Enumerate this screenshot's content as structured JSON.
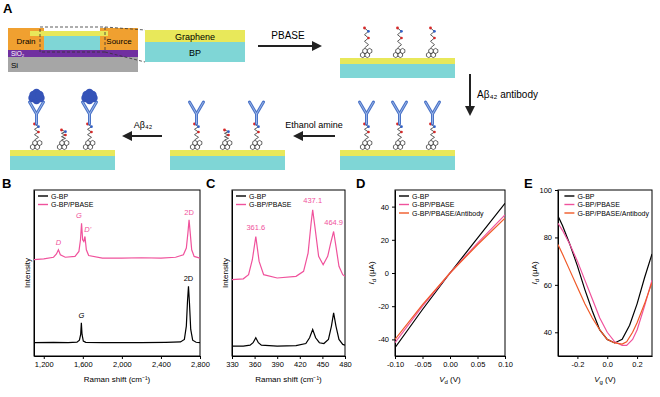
{
  "diagram": {
    "label": "A",
    "drain": "Drain",
    "source": "Source",
    "oxide": "SiO₂",
    "substrate": "Si",
    "top_layer": "Graphene",
    "bottom_layer": "BP",
    "steps": [
      "PBASE",
      "Aβ₄₂ antibody",
      "Ethanol amine",
      "Aβ₄₂"
    ]
  },
  "chart_data": [
    {
      "type": "line",
      "title": "B",
      "x_label": "Raman shift (cm⁻¹)",
      "y_label": "Intensity",
      "xlim": [
        1100,
        2800
      ],
      "ylim": [
        0,
        1
      ],
      "xticks": [
        {
          "value": 1200,
          "label": "1,200"
        },
        {
          "value": 1600,
          "label": "1,600"
        },
        {
          "value": 2000,
          "label": "2,000"
        },
        {
          "value": 2400,
          "label": "2,400"
        },
        {
          "value": 2800,
          "label": "2,800"
        }
      ],
      "yticks": [],
      "tick_labels": "x",
      "legend": "upper left",
      "series": [
        {
          "name": "G-BP",
          "color": "#000000",
          "x": [
            1100,
            1300,
            1450,
            1540,
            1565,
            1578,
            1585,
            1592,
            1605,
            1630,
            1800,
            2000,
            2200,
            2450,
            2600,
            2640,
            2660,
            2672,
            2682,
            2692,
            2705,
            2725,
            2760,
            2800
          ],
          "values": [
            0.08,
            0.082,
            0.08,
            0.083,
            0.095,
            0.13,
            0.2,
            0.13,
            0.09,
            0.082,
            0.08,
            0.081,
            0.08,
            0.082,
            0.085,
            0.1,
            0.18,
            0.33,
            0.42,
            0.32,
            0.16,
            0.095,
            0.083,
            0.08
          ],
          "annotations": [
            {
              "text": "G",
              "x": 1585,
              "y": 0.23
            },
            {
              "text": "2D",
              "x": 2682,
              "y": 0.45
            }
          ]
        },
        {
          "name": "G-BP/PBASE",
          "color": "#f0529c",
          "x": [
            1100,
            1200,
            1300,
            1330,
            1350,
            1370,
            1420,
            1520,
            1560,
            1576,
            1587,
            1598,
            1610,
            1622,
            1636,
            1660,
            1800,
            2000,
            2200,
            2400,
            2550,
            2630,
            2660,
            2676,
            2688,
            2700,
            2715,
            2740,
            2800
          ],
          "values": [
            0.58,
            0.585,
            0.595,
            0.615,
            0.64,
            0.61,
            0.595,
            0.6,
            0.63,
            0.7,
            0.8,
            0.7,
            0.69,
            0.72,
            0.64,
            0.605,
            0.59,
            0.59,
            0.592,
            0.59,
            0.595,
            0.61,
            0.65,
            0.74,
            0.82,
            0.74,
            0.64,
            0.6,
            0.59
          ],
          "annotations": [
            {
              "text": "D",
              "x": 1350,
              "y": 0.67
            },
            {
              "text": "G",
              "x": 1560,
              "y": 0.83
            },
            {
              "text": "D'",
              "x": 1650,
              "y": 0.75
            },
            {
              "text": "2D",
              "x": 2688,
              "y": 0.85
            }
          ]
        }
      ]
    },
    {
      "type": "line",
      "title": "C",
      "x_label": "Raman shift (cm⁻¹)",
      "y_label": "Intensity",
      "xlim": [
        330,
        480
      ],
      "ylim": [
        0,
        1
      ],
      "xticks": [
        330,
        360,
        390,
        420,
        450,
        480
      ],
      "yticks": [],
      "tick_labels": "x",
      "legend": "upper left",
      "series": [
        {
          "name": "G-BP",
          "color": "#000000",
          "x": [
            330,
            345,
            354,
            358,
            361.6,
            365,
            369,
            390,
            415,
            428,
            433,
            437.1,
            441,
            446,
            452,
            458,
            462,
            464.9,
            468,
            472,
            477,
            480
          ],
          "values": [
            0.06,
            0.06,
            0.065,
            0.08,
            0.11,
            0.08,
            0.065,
            0.06,
            0.062,
            0.075,
            0.11,
            0.16,
            0.11,
            0.08,
            0.075,
            0.1,
            0.18,
            0.26,
            0.18,
            0.1,
            0.07,
            0.065
          ]
        },
        {
          "name": "G-BP/PBASE",
          "color": "#f0529c",
          "x": [
            330,
            345,
            352,
            357,
            361.6,
            366,
            372,
            390,
            415,
            425,
            431,
            435,
            437.1,
            440,
            445,
            451,
            457,
            461,
            464.9,
            468,
            472,
            477,
            480
          ],
          "values": [
            0.46,
            0.465,
            0.49,
            0.58,
            0.72,
            0.57,
            0.49,
            0.47,
            0.48,
            0.51,
            0.62,
            0.8,
            0.88,
            0.78,
            0.6,
            0.55,
            0.6,
            0.68,
            0.75,
            0.66,
            0.54,
            0.49,
            0.48
          ],
          "annotations": [
            {
              "text": "361.6",
              "x": 361.6,
              "y": 0.76
            },
            {
              "text": "437.1",
              "x": 437.1,
              "y": 0.92
            },
            {
              "text": "464.9",
              "x": 464.9,
              "y": 0.79
            }
          ]
        }
      ]
    },
    {
      "type": "line",
      "title": "D",
      "x_label": "Vd (V)",
      "y_label": "Id (μA)",
      "xlim": [
        -0.1,
        0.1
      ],
      "ylim": [
        -50,
        50
      ],
      "xticks": [
        {
          "value": -0.1,
          "label": "-0.10"
        },
        -0.05,
        {
          "value": 0,
          "label": "0.00"
        },
        0.05,
        {
          "value": 0.1,
          "label": "0.10"
        }
      ],
      "yticks": [
        -40,
        -20,
        0,
        20,
        40
      ],
      "legend": "upper left",
      "series": [
        {
          "name": "G-BP",
          "color": "#000000",
          "x": [
            -0.1,
            -0.05,
            0,
            0.05,
            0.1
          ],
          "values": [
            -45,
            -22,
            0,
            21,
            42
          ]
        },
        {
          "name": "G-BP/PBASE",
          "color": "#f0529c",
          "x": [
            -0.1,
            -0.05,
            0,
            0.05,
            0.1
          ],
          "values": [
            -42,
            -20,
            0,
            18,
            35
          ]
        },
        {
          "name": "G-BP/PBASE/Antibody",
          "color": "#f05a28",
          "x": [
            -0.1,
            -0.05,
            0,
            0.05,
            0.1
          ],
          "values": [
            -40,
            -19,
            0,
            17,
            33
          ]
        }
      ]
    },
    {
      "type": "line",
      "title": "E",
      "x_label": "Vg (V)",
      "y_label": "Id (μA)",
      "xlim": [
        -0.33,
        0.3
      ],
      "ylim": [
        30,
        100
      ],
      "xticks": [
        {
          "value": -0.2,
          "label": "-0.2"
        },
        {
          "value": 0,
          "label": "0.0"
        },
        0.2
      ],
      "yticks": [
        40,
        60,
        80,
        100
      ],
      "legend": "upper right",
      "series": [
        {
          "name": "G-BP",
          "color": "#000000",
          "x": [
            -0.33,
            -0.3,
            -0.25,
            -0.2,
            -0.15,
            -0.1,
            -0.05,
            0,
            0.05,
            0.1,
            0.15,
            0.2,
            0.25,
            0.3
          ],
          "values": [
            89,
            85,
            77,
            68,
            58,
            49,
            41,
            37,
            35.5,
            37,
            43,
            52,
            63,
            73
          ]
        },
        {
          "name": "G-BP/PBASE",
          "color": "#f0529c",
          "x": [
            -0.33,
            -0.3,
            -0.25,
            -0.2,
            -0.15,
            -0.1,
            -0.05,
            0,
            0.05,
            0.1,
            0.13,
            0.17,
            0.2,
            0.25,
            0.3
          ],
          "values": [
            86,
            83,
            77,
            70,
            62,
            54,
            46,
            40,
            36,
            34.5,
            34.5,
            37,
            41,
            51,
            62
          ]
        },
        {
          "name": "G-BP/PBASE/Antibody",
          "color": "#f05a28",
          "x": [
            -0.33,
            -0.3,
            -0.25,
            -0.2,
            -0.15,
            -0.1,
            -0.05,
            0,
            0.05,
            0.1,
            0.13,
            0.17,
            0.2,
            0.25,
            0.3
          ],
          "values": [
            77,
            73,
            66,
            59,
            52,
            46,
            41,
            37,
            35.5,
            35,
            36,
            40,
            44,
            52,
            61
          ]
        }
      ]
    }
  ]
}
